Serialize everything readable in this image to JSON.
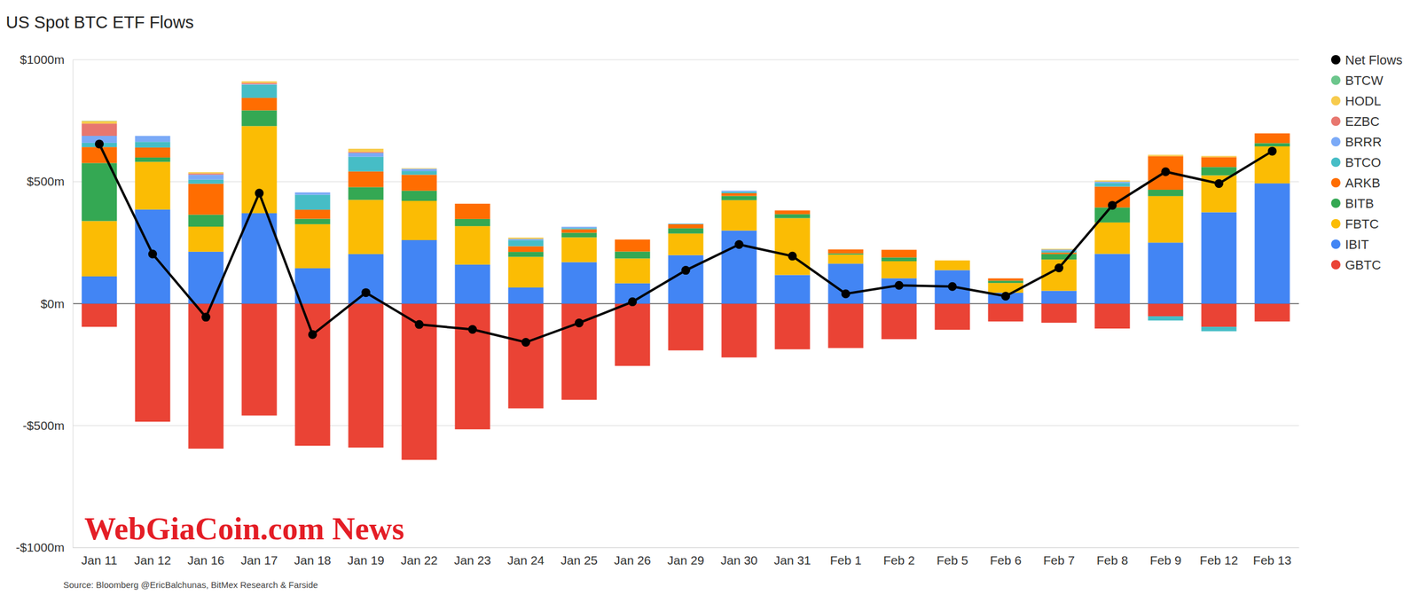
{
  "chart_data": {
    "type": "bar",
    "title": "US Spot BTC ETF Flows",
    "source": "Source: Bloomberg @EricBalchunas, BitMex Research & Farside",
    "watermark": "WebGiaCoin.com News",
    "stacked": true,
    "grid": true,
    "legend": "right",
    "categories": [
      "Jan 11",
      "Jan 12",
      "Jan 16",
      "Jan 17",
      "Jan 18",
      "Jan 19",
      "Jan 22",
      "Jan 23",
      "Jan 24",
      "Jan 25",
      "Jan 26",
      "Jan 29",
      "Jan 30",
      "Jan 31",
      "Feb 1",
      "Feb 2",
      "Feb 5",
      "Feb 6",
      "Feb 7",
      "Feb 8",
      "Feb 9",
      "Feb 12",
      "Feb 13"
    ],
    "ylim": [
      -1000,
      1000
    ],
    "yticks": [
      {
        "value": -1000,
        "label": "-$1000m"
      },
      {
        "value": -500,
        "label": "-$500m"
      },
      {
        "value": 0,
        "label": "$0m"
      },
      {
        "value": 500,
        "label": "$500m"
      },
      {
        "value": 1000,
        "label": "$1000m"
      }
    ],
    "series": [
      {
        "name": "Net Flows",
        "type": "line",
        "color": "#000000",
        "marker": "circle",
        "values": [
          654.5,
          203.5,
          -55.5,
          453.0,
          -126.7,
          45.2,
          -85.5,
          -105.6,
          -158.5,
          -79.1,
          7.6,
          136.6,
          242.5,
          194.9,
          40.2,
          75.2,
          70.1,
          30.6,
          146.4,
          403.0,
          540.9,
          492.3,
          625.1
        ]
      },
      {
        "name": "BTCW",
        "color": "#6cc68c",
        "values": [
          1.0,
          0,
          0,
          0,
          0,
          0,
          0,
          0,
          0,
          0,
          0,
          0,
          0,
          0,
          0,
          0,
          0,
          0,
          0,
          0,
          0,
          0,
          0
        ]
      },
      {
        "name": "HODL",
        "color": "#f7cb4d",
        "values": [
          10.6,
          0,
          5.3,
          6.6,
          0,
          13.2,
          2.3,
          0,
          5.7,
          0,
          0,
          0,
          0,
          0,
          0,
          0,
          0,
          0,
          3.0,
          5.0,
          5.5,
          5.0,
          0
        ]
      },
      {
        "name": "EZBC",
        "color": "#e8776f",
        "values": [
          50.1,
          0,
          4.9,
          5.1,
          0,
          4.0,
          0,
          0,
          0,
          0,
          0,
          0,
          0,
          0,
          0,
          0,
          0,
          0,
          0,
          0,
          0,
          0,
          0
        ]
      },
      {
        "name": "BRRR",
        "color": "#7baaf7",
        "values": [
          28.6,
          24.3,
          20.0,
          2.0,
          9.7,
          15.8,
          9.1,
          0,
          5.0,
          4.9,
          0,
          1.0,
          4.5,
          0,
          0,
          0,
          0,
          0,
          5.0,
          5.0,
          0,
          0,
          0
        ]
      },
      {
        "name": "BTCO",
        "color": "#46bdc6",
        "values": [
          17.4,
          23.3,
          17.0,
          54.2,
          61.3,
          60.1,
          15.1,
          0,
          24.7,
          5.0,
          0,
          2.0,
          6.0,
          0,
          0,
          0,
          0,
          0,
          7.3,
          15.0,
          -17.4,
          -18.0,
          0
        ]
      },
      {
        "name": "ARKB",
        "color": "#ff6d01",
        "values": [
          65.3,
          40.8,
          126.9,
          51.3,
          37.1,
          64.4,
          65.6,
          62.5,
          23.2,
          14.4,
          49.2,
          16.4,
          11.0,
          15.3,
          16.2,
          31.4,
          0,
          9.5,
          6.0,
          85.7,
          137.7,
          40.4,
          40.0
        ]
      },
      {
        "name": "BITB",
        "color": "#34a853",
        "values": [
          237.9,
          17.9,
          49.0,
          64.4,
          22.3,
          52.2,
          41.5,
          29.4,
          20.4,
          19.1,
          28.4,
          21.4,
          17.3,
          16.2,
          4.9,
          15.3,
          0,
          9.3,
          22.6,
          61.5,
          26.0,
          34.2,
          13.4
        ]
      },
      {
        "name": "FBTC",
        "color": "#fbbc04",
        "values": [
          227.0,
          195.3,
          102.8,
          357.2,
          180.6,
          222.3,
          160.9,
          157.7,
          125.7,
          101.5,
          101.8,
          88.7,
          124.6,
          233.0,
          37.2,
          70.2,
          39.9,
          40.2,
          128.1,
          128.7,
          190.6,
          151.1,
          151.6
        ]
      },
      {
        "name": "IBIT",
        "color": "#4285f4",
        "values": [
          111.7,
          386.0,
          212.9,
          370.8,
          145.1,
          203.2,
          260.5,
          160.1,
          66.1,
          170.1,
          83.4,
          198.8,
          299.7,
          117.6,
          163.9,
          103.9,
          137.3,
          44.6,
          52.7,
          204.1,
          250.3,
          374.7,
          493.1
        ]
      },
      {
        "name": "GBTC",
        "color": "#ea4335",
        "values": [
          -95.1,
          -484.1,
          -594.3,
          -458.6,
          -582.8,
          -590.0,
          -640.5,
          -515.3,
          -429.3,
          -394.1,
          -255.2,
          -191.7,
          -220.6,
          -187.2,
          -182.0,
          -145.6,
          -107.1,
          -73.0,
          -78.3,
          -102.0,
          -51.8,
          -95.1,
          -73.0
        ]
      }
    ]
  }
}
